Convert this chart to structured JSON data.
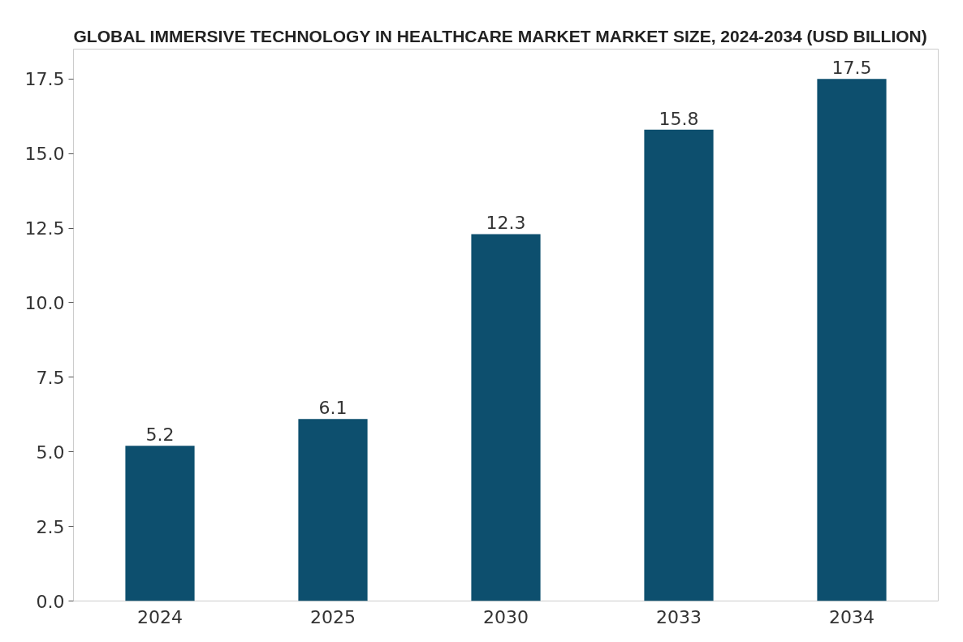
{
  "chart_data": {
    "type": "bar",
    "title": "GLOBAL IMMERSIVE TECHNOLOGY IN HEALTHCARE MARKET MARKET SIZE, 2024-2034 (USD BILLION)",
    "categories": [
      "2024",
      "2025",
      "2030",
      "2033",
      "2034"
    ],
    "values": [
      5.2,
      6.1,
      12.3,
      15.8,
      17.5
    ],
    "color": "#0d4f6e",
    "ylim": [
      0,
      18.5
    ],
    "yticks": [
      {
        "value": 0,
        "label": "0.0"
      },
      {
        "value": 2.5,
        "label": "2.5"
      },
      {
        "value": 5,
        "label": "5.0"
      },
      {
        "value": 7.5,
        "label": "7.5"
      },
      {
        "value": 10,
        "label": "10.0"
      },
      {
        "value": 12.5,
        "label": "12.5"
      },
      {
        "value": 15,
        "label": "15.0"
      },
      {
        "value": 17.5,
        "label": "17.5"
      }
    ],
    "data_labels": true,
    "grid": false
  }
}
